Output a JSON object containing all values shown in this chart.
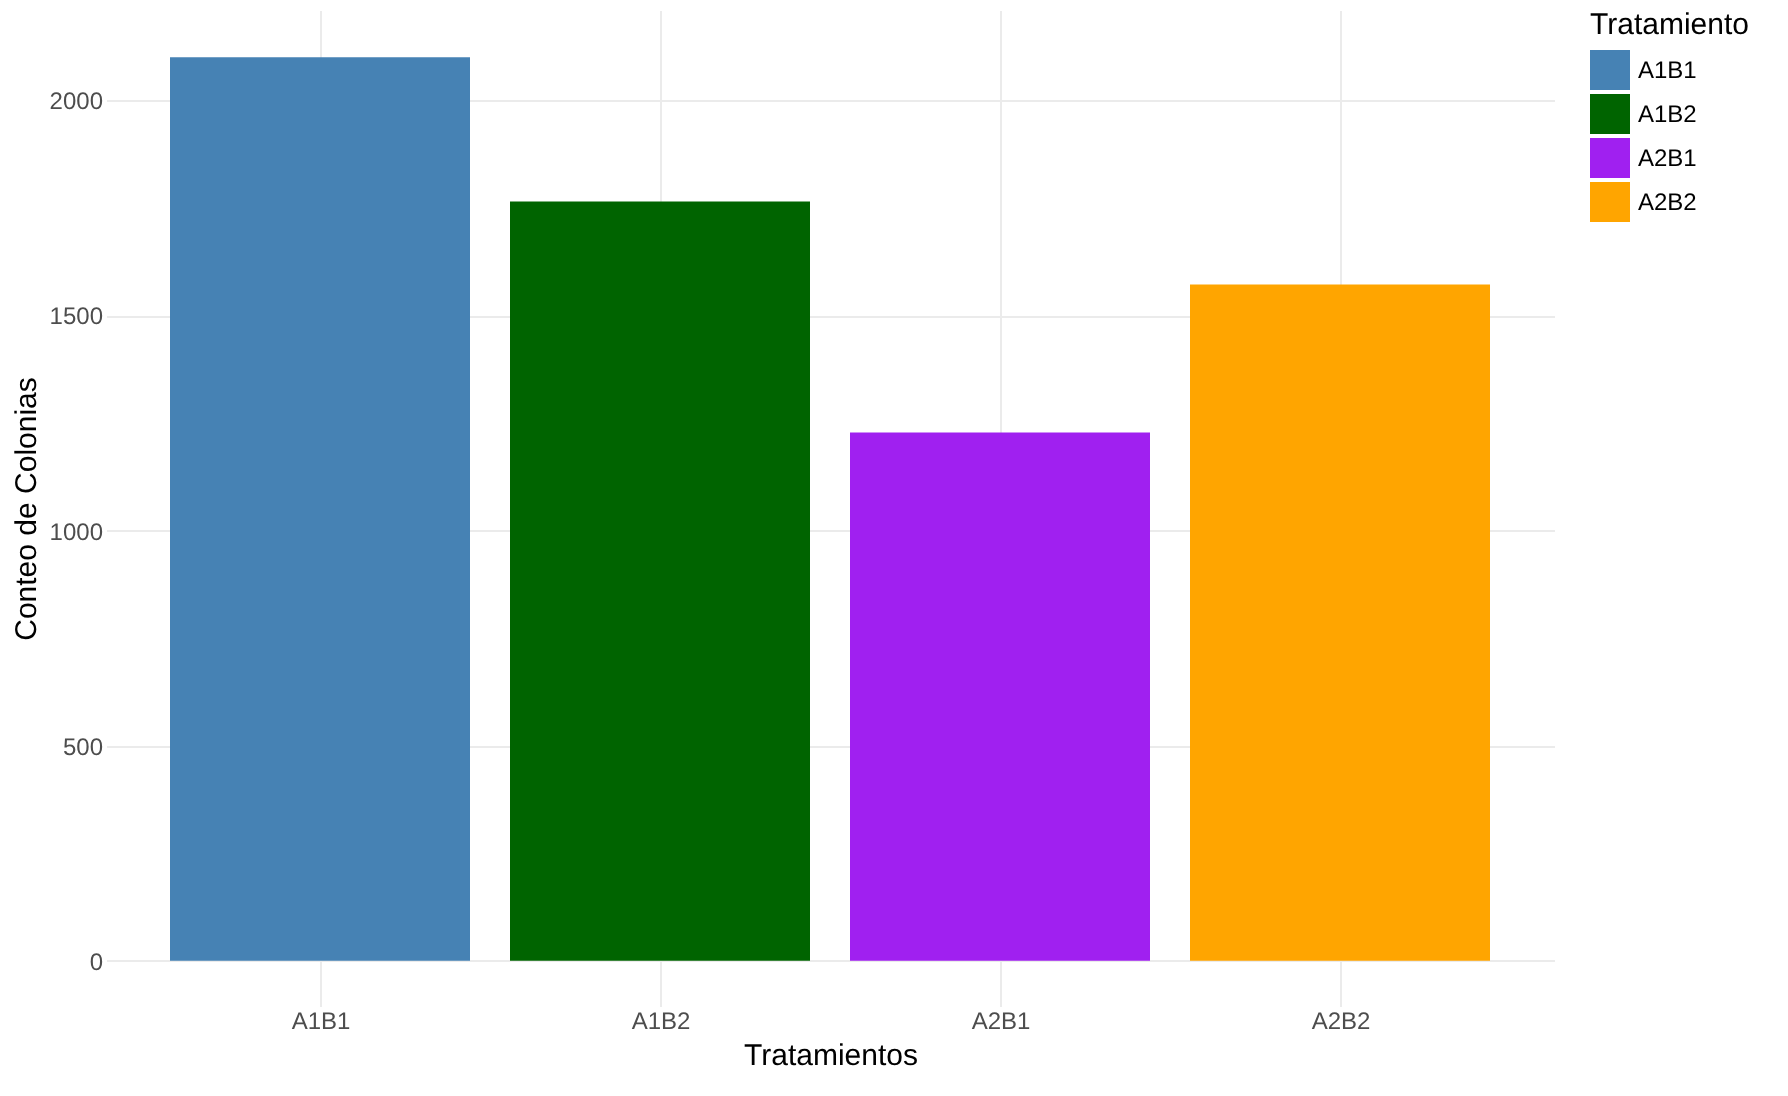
{
  "chart_data": {
    "type": "bar",
    "xlabel": "Tratamientos",
    "ylabel": "Conteo de Colonias",
    "legend_title": "Tratamiento",
    "categories": [
      "A1B1",
      "A1B2",
      "A2B1",
      "A2B2"
    ],
    "series": [
      {
        "name": "A1B1",
        "color": "#4682b4",
        "values": [
          2100,
          null,
          null,
          null
        ]
      },
      {
        "name": "A1B2",
        "color": "#006400",
        "values": [
          null,
          1765,
          null,
          null
        ]
      },
      {
        "name": "A2B1",
        "color": "#a020f0",
        "values": [
          null,
          null,
          1228,
          null
        ]
      },
      {
        "name": "A2B2",
        "color": "#ffa500",
        "values": [
          null,
          null,
          null,
          1572
        ]
      }
    ],
    "ylim": [
      -105,
      2210
    ],
    "yticks": [
      0,
      500,
      1000,
      1500,
      2000
    ],
    "grid": true,
    "legend": "right"
  }
}
